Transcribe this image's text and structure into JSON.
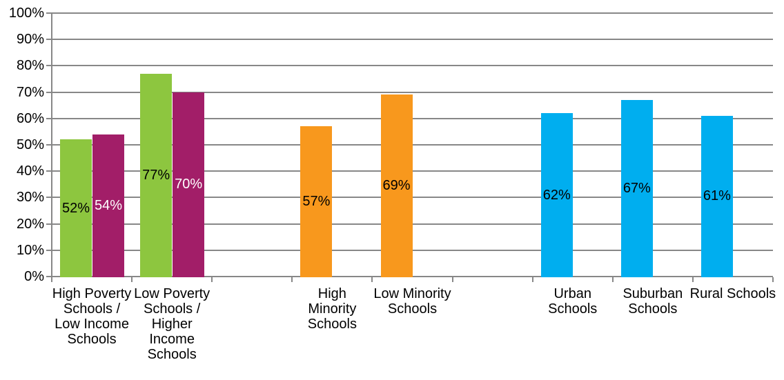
{
  "chart_data": {
    "type": "bar",
    "title": "",
    "xlabel": "",
    "ylabel": "",
    "ylim": [
      0,
      100
    ],
    "y_tick_step": 10,
    "grid": true,
    "legend": false,
    "y_tick_labels": [
      "0%",
      "10%",
      "20%",
      "30%",
      "40%",
      "50%",
      "60%",
      "70%",
      "80%",
      "90%",
      "100%"
    ],
    "colors": {
      "green": "#8DC63F",
      "magenta": "#A21E68",
      "orange": "#F8981D",
      "blue": "#00AEEF",
      "grid": "#878787",
      "label_dark": "#000000",
      "label_light": "#FFFFFF"
    },
    "slot_count": 9,
    "categories": [
      {
        "slot": 0,
        "name": "High Poverty Schools / Low Income Schools",
        "text": "High Poverty\nSchools /\nLow Income\nSchools"
      },
      {
        "slot": 1,
        "name": "Low Poverty Schools / Higher Income Schools",
        "text": "Low Poverty\nSchools /\nHigher\nIncome\nSchools"
      },
      {
        "slot": 3,
        "name": "High Minority Schools",
        "text": "High\nMinority\nSchools"
      },
      {
        "slot": 4,
        "name": "Low Minority Schools",
        "text": "Low Minority\nSchools"
      },
      {
        "slot": 6,
        "name": "Urban Schools",
        "text": "Urban\nSchools"
      },
      {
        "slot": 7,
        "name": "Suburban Schools",
        "text": "Suburban\nSchools"
      },
      {
        "slot": 8,
        "name": "Rural Schools",
        "text": "Rural Schools"
      }
    ],
    "bars": [
      {
        "category": "High Poverty Schools / Low Income Schools",
        "slot": 0,
        "pos": "left",
        "value": 52,
        "label": "52%",
        "color": "#8DC63F",
        "label_color": "#000000"
      },
      {
        "category": "High Poverty Schools / Low Income Schools",
        "slot": 0,
        "pos": "right",
        "value": 54,
        "label": "54%",
        "color": "#A21E68",
        "label_color": "#FFFFFF"
      },
      {
        "category": "Low Poverty Schools / Higher Income Schools",
        "slot": 1,
        "pos": "left",
        "value": 77,
        "label": "77%",
        "color": "#8DC63F",
        "label_color": "#000000"
      },
      {
        "category": "Low Poverty Schools / Higher Income Schools",
        "slot": 1,
        "pos": "right",
        "value": 70,
        "label": "70%",
        "color": "#A21E68",
        "label_color": "#FFFFFF"
      },
      {
        "category": "High Minority Schools",
        "slot": 3,
        "pos": "left",
        "value": 57,
        "label": "57%",
        "color": "#F8981D",
        "label_color": "#000000"
      },
      {
        "category": "Low Minority Schools",
        "slot": 4,
        "pos": "left",
        "value": 69,
        "label": "69%",
        "color": "#F8981D",
        "label_color": "#000000"
      },
      {
        "category": "Urban Schools",
        "slot": 6,
        "pos": "left",
        "value": 62,
        "label": "62%",
        "color": "#00AEEF",
        "label_color": "#000000"
      },
      {
        "category": "Suburban Schools",
        "slot": 7,
        "pos": "left",
        "value": 67,
        "label": "67%",
        "color": "#00AEEF",
        "label_color": "#000000"
      },
      {
        "category": "Rural Schools",
        "slot": 8,
        "pos": "left",
        "value": 61,
        "label": "61%",
        "color": "#00AEEF",
        "label_color": "#000000"
      }
    ]
  }
}
